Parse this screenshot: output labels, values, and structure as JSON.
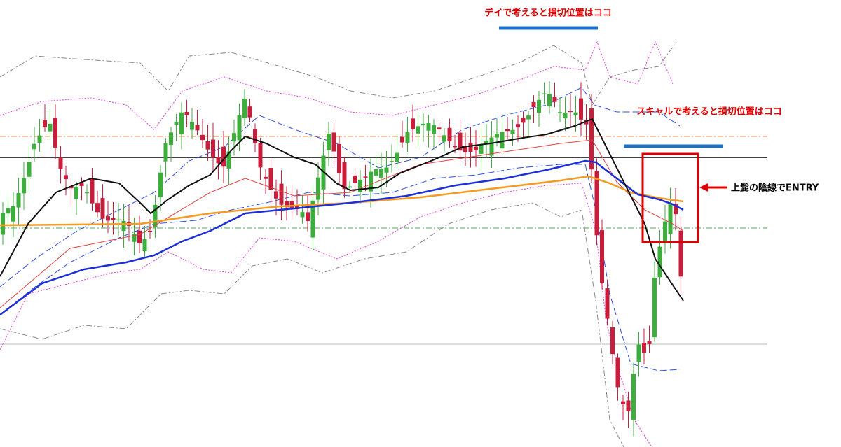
{
  "annotations": {
    "day_stop": "デイで考えると損切位置はココ",
    "scalp_stop": "スキャルで考えると損切位置はココ",
    "entry": "上髭の陰線でENTRY"
  }
}
